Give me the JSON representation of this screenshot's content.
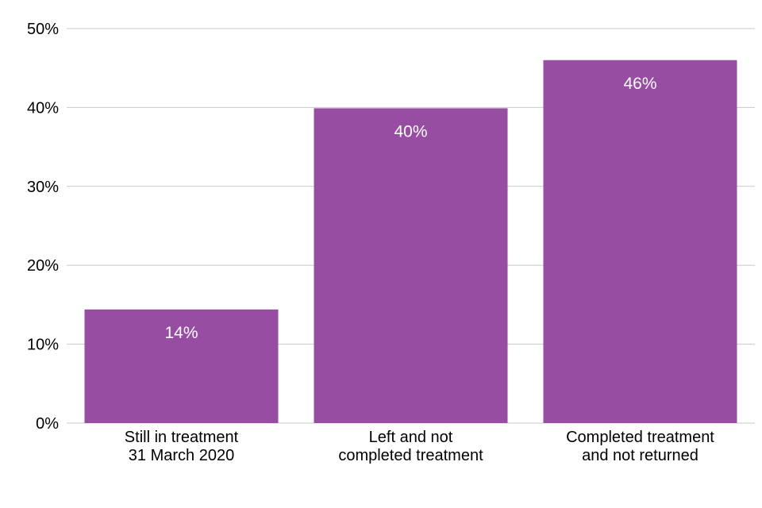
{
  "chart_data": {
    "type": "bar",
    "title": "",
    "xlabel": "",
    "ylabel": "",
    "categories": [
      [
        "Still in treatment",
        "31 March 2020"
      ],
      [
        "Left and not",
        "completed treatment"
      ],
      [
        "Completed treatment",
        "and not returned"
      ]
    ],
    "values": [
      14.4,
      39.9,
      46.0
    ],
    "data_labels": [
      "14%",
      "40%",
      "46%"
    ],
    "ylim": [
      0,
      50
    ],
    "yticks": [
      0,
      10,
      20,
      30,
      40,
      50
    ],
    "ytick_labels": [
      "0%",
      "10%",
      "20%",
      "30%",
      "40%",
      "50%"
    ],
    "bar_color": "#974ea2",
    "data_label_color": "#ffffff",
    "grid": true,
    "legend": "none"
  }
}
